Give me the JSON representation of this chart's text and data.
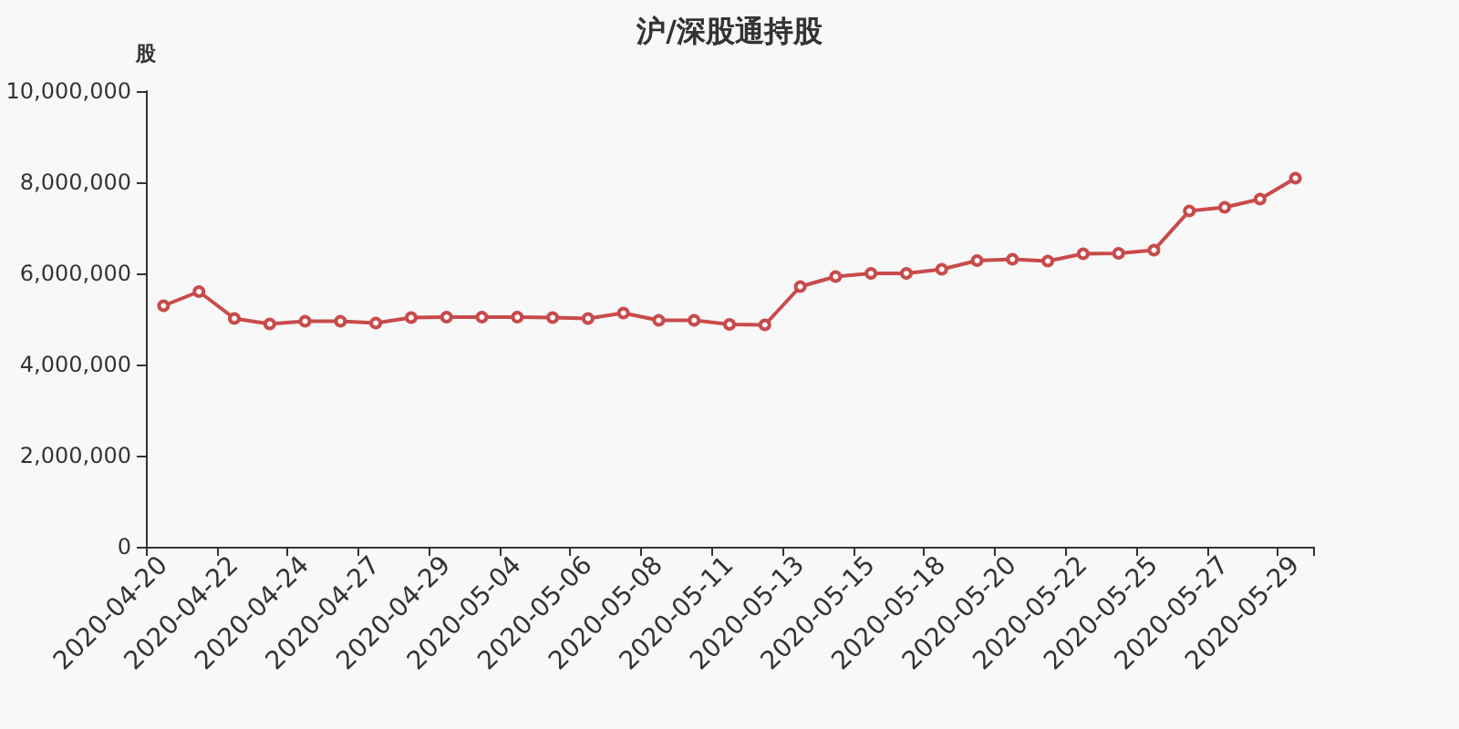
{
  "chart_data": {
    "type": "line",
    "title": "沪/深股通持股",
    "ylabel": "股",
    "categories": [
      "2020-04-20",
      null,
      "2020-04-22",
      null,
      "2020-04-24",
      null,
      "2020-04-27",
      null,
      "2020-04-29",
      null,
      "2020-05-04",
      null,
      "2020-05-06",
      null,
      "2020-05-08",
      null,
      "2020-05-11",
      null,
      "2020-05-13",
      null,
      "2020-05-15",
      null,
      "2020-05-18",
      null,
      "2020-05-20",
      null,
      "2020-05-22",
      null,
      "2020-05-25",
      null,
      "2020-05-27",
      null,
      "2020-05-29"
    ],
    "series": [
      {
        "color": "#c84b4b",
        "values": [
          5290000,
          5600000,
          5010000,
          4890000,
          4950000,
          4950000,
          4910000,
          5030000,
          5040000,
          5040000,
          5040000,
          5030000,
          5010000,
          5130000,
          4970000,
          4970000,
          4880000,
          4870000,
          5710000,
          5930000,
          6000000,
          6000000,
          6090000,
          6280000,
          6310000,
          6270000,
          6430000,
          6440000,
          6510000,
          7370000,
          7450000,
          7630000,
          8090000
        ]
      }
    ],
    "ylim": [
      0,
      10000000
    ],
    "yticks": [
      0,
      {
        "value": 2000000,
        "label": "2,000,000"
      },
      {
        "value": 4000000,
        "label": "4,000,000"
      },
      {
        "value": 6000000,
        "label": "6,000,000"
      },
      {
        "value": 8000000,
        "label": "8,000,000"
      },
      {
        "value": 10000000,
        "label": "10,000,000"
      }
    ],
    "grid": false,
    "marker": "circle",
    "line_style": "solid"
  }
}
